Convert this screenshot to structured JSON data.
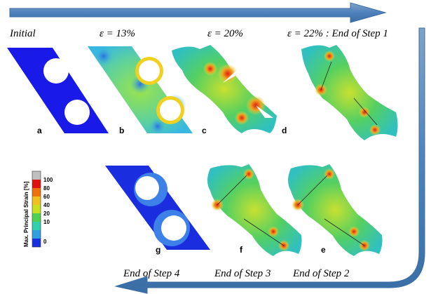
{
  "header_labels": [
    "Initial",
    "ε = 13%",
    "ε = 20%",
    "ε = 22% : End of Step 1"
  ],
  "panels": [
    "a",
    "b",
    "c",
    "d",
    "e",
    "f",
    "g"
  ],
  "bottom_labels": [
    "End of Step 4",
    "End of Step 3",
    "End of Step 2"
  ],
  "legend": {
    "title": "Max. Principal Strain [%]",
    "ticks": [
      100,
      80,
      60,
      40,
      20,
      10,
      0
    ]
  }
}
